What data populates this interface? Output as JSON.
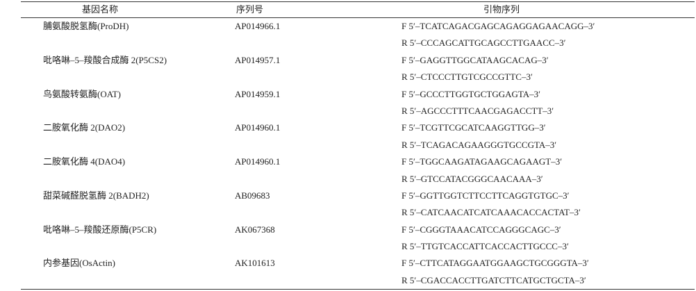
{
  "table": {
    "header": [
      "基因名称",
      "序列号",
      "引物序列"
    ],
    "rows": [
      {
        "name": "脯氨酸脱氢酶(ProDH)",
        "accession": "AP014966.1",
        "primers": [
          "F 5′–TCATCAGACGAGCAGAGGAGAACAGG–3′",
          "R 5′–CCCAGCATTGCAGCCTTGAACC–3′"
        ]
      },
      {
        "name": "吡咯啉–5–羧酸合成酶 2(P5CS2)",
        "accession": "AP014957.1",
        "primers": [
          "F 5′–GAGGTTGGCATAAGCACAG–3′",
          "R 5′–CTCCCTTGTCGCCGTTC–3′"
        ]
      },
      {
        "name": "鸟氨酸转氨酶(OAT)",
        "accession": "AP014959.1",
        "primers": [
          "F 5′–GCCCTTGGTGCTGGAGTA–3′",
          "R 5′–AGCCCTTTCAACGAGACCTT–3′"
        ]
      },
      {
        "name": "二胺氧化酶 2(DAO2)",
        "accession": "AP014960.1",
        "primers": [
          "F 5′–TCGTTCGCATCAAGGTTGG–3′",
          "R 5′–TCAGACAGAAGGGTGCCGTA–3′"
        ]
      },
      {
        "name": "二胺氧化酶 4(DAO4)",
        "accession": "AP014960.1",
        "primers": [
          "F 5′–TGGCAAGATAGAAGCAGAAGT–3′",
          "R 5′–GTCCATACGGGCAACAAA–3′"
        ]
      },
      {
        "name": "甜菜碱醛脱氢酶 2(BADH2)",
        "accession": "AB09683",
        "primers": [
          "F 5′–GGTTGGTCTTCCTTCAGGTGTGC–3′",
          "R 5′–CATCAACATCATCAAACACCACTAT–3′"
        ]
      },
      {
        "name": "吡咯啉–5–羧酸还原酶(P5CR)",
        "accession": "AK067368",
        "primers": [
          "F 5′–CGGGTAAACATCCAGGGCAGC–3′",
          "R 5′–TTGTCACCATTCACCACTTGCCC–3′"
        ]
      },
      {
        "name": "内参基因(OsActin)",
        "accession": "AK101613",
        "primers": [
          "F 5′–CTTCATAGGAATGGAAGCTGCGGGTA–3′",
          "R 5′–CGACCACCTTGATCTTCATGCTGCTA–3′"
        ]
      }
    ]
  }
}
